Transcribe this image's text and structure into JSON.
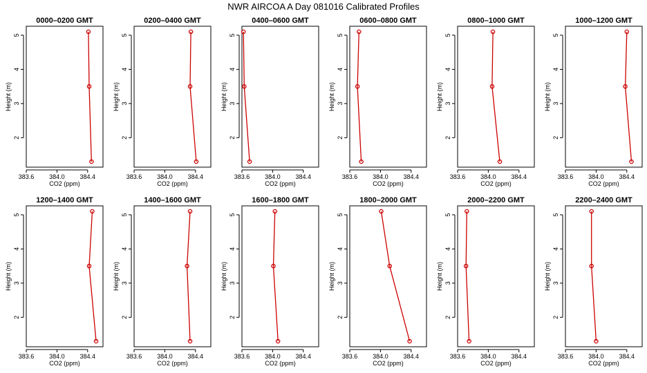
{
  "chart_data": {
    "type": "line",
    "title": "NWR AIRCOA A  Day 081016  Calibrated Profiles",
    "xlabel": "CO2 (ppm)",
    "ylabel": "Height (m)",
    "xlim": [
      383.6,
      384.6
    ],
    "ylim": [
      1.3,
      5.1
    ],
    "xticks": [
      383.6,
      384.0,
      384.4
    ],
    "xtick_labels": [
      "383.6",
      "384.0",
      "384.4"
    ],
    "yticks": [
      2,
      3,
      4,
      5
    ],
    "ytick_labels": [
      "2",
      "3",
      "4",
      "5"
    ],
    "heights": [
      5.1,
      3.5,
      1.3
    ],
    "grid": false,
    "series_color": "#cc0000",
    "panels": [
      {
        "name": "0000–0200 GMT",
        "x": [
          384.41,
          384.42,
          384.45
        ]
      },
      {
        "name": "0200–0400 GMT",
        "x": [
          384.34,
          384.33,
          384.41
        ]
      },
      {
        "name": "0400–0600 GMT",
        "x": [
          383.62,
          383.63,
          383.7
        ]
      },
      {
        "name": "0600–0800 GMT",
        "x": [
          383.72,
          383.7,
          383.75
        ]
      },
      {
        "name": "0800–1000 GMT",
        "x": [
          384.06,
          384.05,
          384.15
        ]
      },
      {
        "name": "1000–1200 GMT",
        "x": [
          384.4,
          384.38,
          384.46
        ]
      },
      {
        "name": "1200–1400 GMT",
        "x": [
          384.46,
          384.42,
          384.51
        ]
      },
      {
        "name": "1400–1600 GMT",
        "x": [
          384.33,
          384.29,
          384.33
        ]
      },
      {
        "name": "1600–1800 GMT",
        "x": [
          384.03,
          384.01,
          384.07
        ]
      },
      {
        "name": "1800–2000 GMT",
        "x": [
          384.01,
          384.12,
          384.38
        ]
      },
      {
        "name": "2000–2200 GMT",
        "x": [
          383.72,
          383.71,
          383.75
        ]
      },
      {
        "name": "2200–2400 GMT",
        "x": [
          383.94,
          383.94,
          384.0
        ]
      }
    ]
  }
}
